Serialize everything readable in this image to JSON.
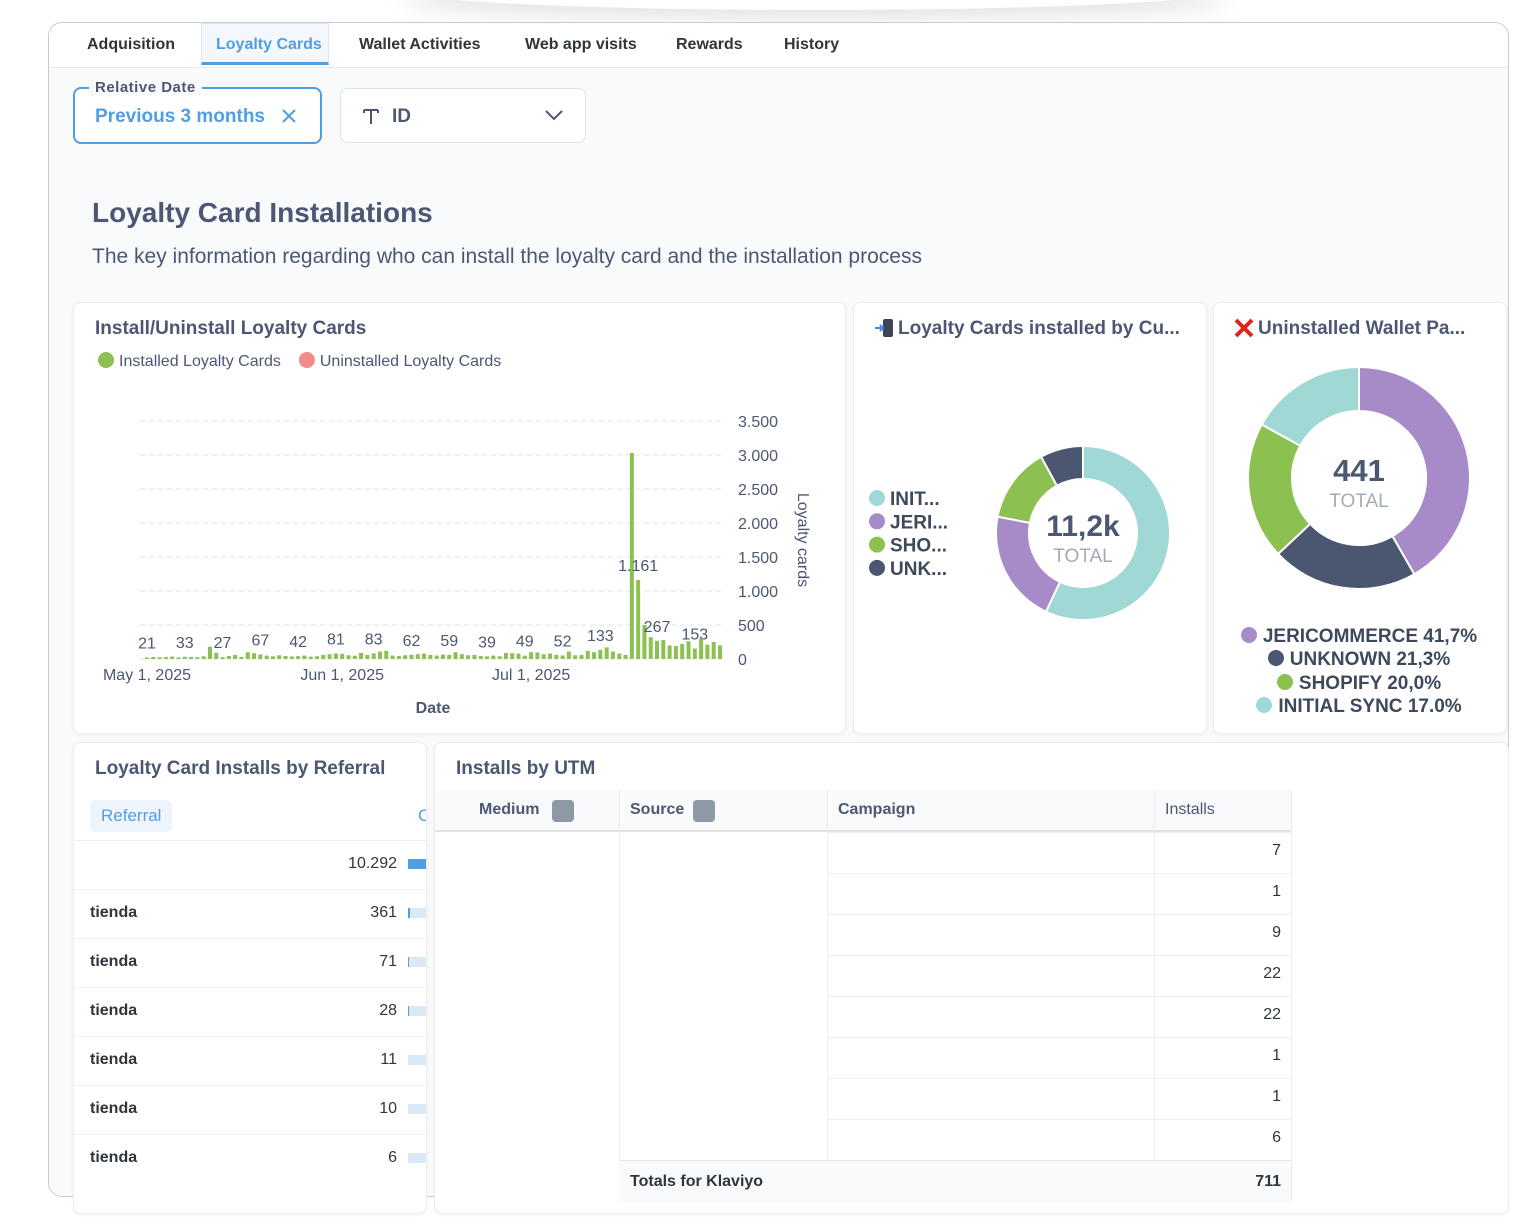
{
  "tabs": {
    "items": [
      "Adquisition",
      "Loyalty Cards",
      "Wallet Activities",
      "Web app visits",
      "Rewards",
      "History"
    ],
    "active": 1
  },
  "filters": {
    "relative_date": {
      "label": "Relative Date",
      "value": "Previous 3 months"
    },
    "id": {
      "value": "ID"
    }
  },
  "section": {
    "title": "Loyalty Card Installations",
    "description": "The key information regarding who can install the loyalty card and the installation process"
  },
  "chart_data": [
    {
      "type": "bar",
      "title": "Install/Uninstall Loyalty Cards",
      "x_label": "Date",
      "y_label": "Loyalty cards",
      "categories": [
        "May 1, 2025",
        null,
        null,
        null,
        null,
        null,
        null,
        null,
        null,
        null,
        null,
        null,
        null,
        null,
        null,
        null,
        null,
        null,
        null,
        null,
        null,
        null,
        null,
        null,
        null,
        null,
        null,
        null,
        null,
        null,
        null,
        "Jun 1, 2025",
        null,
        null,
        null,
        null,
        null,
        null,
        null,
        null,
        null,
        null,
        null,
        null,
        null,
        null,
        null,
        null,
        null,
        null,
        null,
        null,
        null,
        null,
        null,
        null,
        null,
        null,
        null,
        null,
        null,
        "Jul 1, 2025",
        null,
        null,
        null,
        null,
        null,
        null,
        null,
        null,
        null,
        null,
        null,
        null,
        null,
        null,
        null,
        null,
        null,
        null,
        null,
        null,
        null,
        null,
        null,
        null,
        null,
        null,
        null,
        null,
        null,
        null
      ],
      "series": [
        {
          "name": "Installed Loyalty Cards",
          "color": "#8cc152",
          "values": [
            21,
            30,
            25,
            28,
            35,
            22,
            33,
            30,
            26,
            40,
            180,
            90,
            27,
            45,
            60,
            30,
            100,
            85,
            67,
            50,
            40,
            55,
            45,
            38,
            42,
            50,
            35,
            40,
            60,
            70,
            81,
            75,
            55,
            48,
            90,
            60,
            83,
            110,
            120,
            50,
            45,
            55,
            62,
            70,
            80,
            60,
            50,
            65,
            59,
            100,
            70,
            55,
            60,
            45,
            39,
            50,
            40,
            90,
            85,
            80,
            49,
            100,
            95,
            70,
            80,
            60,
            52,
            110,
            55,
            60,
            120,
            100,
            133,
            170,
            110,
            80,
            60,
            3030,
            1161,
            500,
            320,
            267,
            280,
            200,
            190,
            220,
            260,
            153,
            300,
            210,
            250,
            200
          ],
          "value_labels": [
            "21",
            null,
            null,
            null,
            null,
            null,
            "33",
            null,
            null,
            null,
            null,
            null,
            "27",
            null,
            null,
            null,
            null,
            null,
            "67",
            null,
            null,
            null,
            null,
            null,
            "42",
            null,
            null,
            null,
            null,
            null,
            "81",
            null,
            null,
            null,
            null,
            null,
            "83",
            null,
            null,
            null,
            null,
            null,
            "62",
            null,
            null,
            null,
            null,
            null,
            "59",
            null,
            null,
            null,
            null,
            null,
            "39",
            null,
            null,
            null,
            null,
            null,
            "49",
            null,
            null,
            null,
            null,
            null,
            "52",
            null,
            null,
            null,
            null,
            null,
            "133",
            null,
            null,
            null,
            null,
            null,
            "1.161",
            null,
            null,
            "267",
            null,
            null,
            null,
            null,
            null,
            "153",
            null,
            null,
            null,
            null
          ]
        },
        {
          "name": "Uninstalled Loyalty Cards",
          "color": "#ef8b8b",
          "values": [
            0,
            0,
            0,
            0,
            0,
            0,
            0,
            0,
            0,
            0,
            0,
            0,
            0,
            0,
            0,
            0,
            0,
            0,
            0,
            0,
            0,
            0,
            0,
            0,
            0,
            0,
            0,
            0,
            0,
            0,
            0,
            0,
            0,
            0,
            0,
            0,
            0,
            0,
            0,
            0,
            0,
            0,
            0,
            0,
            0,
            0,
            0,
            0,
            0,
            0,
            0,
            0,
            0,
            0,
            0,
            0,
            0,
            0,
            0,
            0,
            0,
            0,
            0,
            0,
            0,
            0,
            0,
            0,
            0,
            0,
            0,
            0,
            0,
            0,
            0,
            0,
            0,
            0,
            0,
            0,
            0,
            0,
            0,
            0,
            0,
            0,
            0,
            0,
            0,
            0,
            0,
            0
          ]
        }
      ],
      "ylim": [
        0,
        3500
      ],
      "yticks": [
        0,
        500,
        {
          "value": 1000,
          "label": "1.000"
        },
        {
          "value": 1500,
          "label": "1.500"
        },
        {
          "value": 2000,
          "label": "2.000"
        },
        {
          "value": 2500,
          "label": "2.500"
        },
        {
          "value": 3000,
          "label": "3.000"
        },
        {
          "value": 3500,
          "label": "3.500"
        }
      ],
      "grid": true,
      "legend": "top"
    },
    {
      "type": "donut",
      "title": "Loyalty Cards installed by Cu...",
      "center_value": "11,2k",
      "center_label": "TOTAL",
      "categories": [
        "INIT...",
        "JERI...",
        "SHO...",
        "UNK..."
      ],
      "values": [
        57,
        21,
        14,
        8
      ],
      "colors": [
        "#a0d8d6",
        "#a78bc8",
        "#8cc152",
        "#4b5670"
      ],
      "legend": "left"
    },
    {
      "type": "donut",
      "title": "Uninstalled Wallet Pa...",
      "center_value": "441",
      "center_label": "TOTAL",
      "categories": [
        "JERICOMMERCE",
        "UNKNOWN",
        "SHOPIFY",
        "INITIAL SYNC"
      ],
      "values": [
        41.7,
        21.3,
        20.0,
        17.0
      ],
      "value_labels": [
        "41,7%",
        "21,3%",
        "20,0%",
        "17.0%"
      ],
      "colors": [
        "#a78bc8",
        "#4b5670",
        "#8cc152",
        "#a0d8d6"
      ],
      "legend": "bottom"
    }
  ],
  "referral_table": {
    "title": "Loyalty Card Installs by Referral",
    "columns": [
      "Referral",
      "C"
    ],
    "rows": [
      {
        "referral": null,
        "installs": 10292,
        "installs_label": "10.292"
      },
      {
        "referral": "tienda",
        "installs": 361
      },
      {
        "referral": "tienda",
        "installs": 71
      },
      {
        "referral": "tienda",
        "installs": 28
      },
      {
        "referral": "tienda",
        "installs": 11
      },
      {
        "referral": "tienda",
        "installs": 10
      },
      {
        "referral": "tienda",
        "installs": 6
      }
    ]
  },
  "utm_table": {
    "title": "Installs by UTM",
    "columns": [
      "Medium",
      "Source",
      "Campaign",
      "Installs"
    ],
    "installs": [
      7,
      1,
      9,
      22,
      22,
      1,
      1,
      6
    ],
    "totals_label": "Totals for Klaviyo",
    "totals_value": 711
  }
}
